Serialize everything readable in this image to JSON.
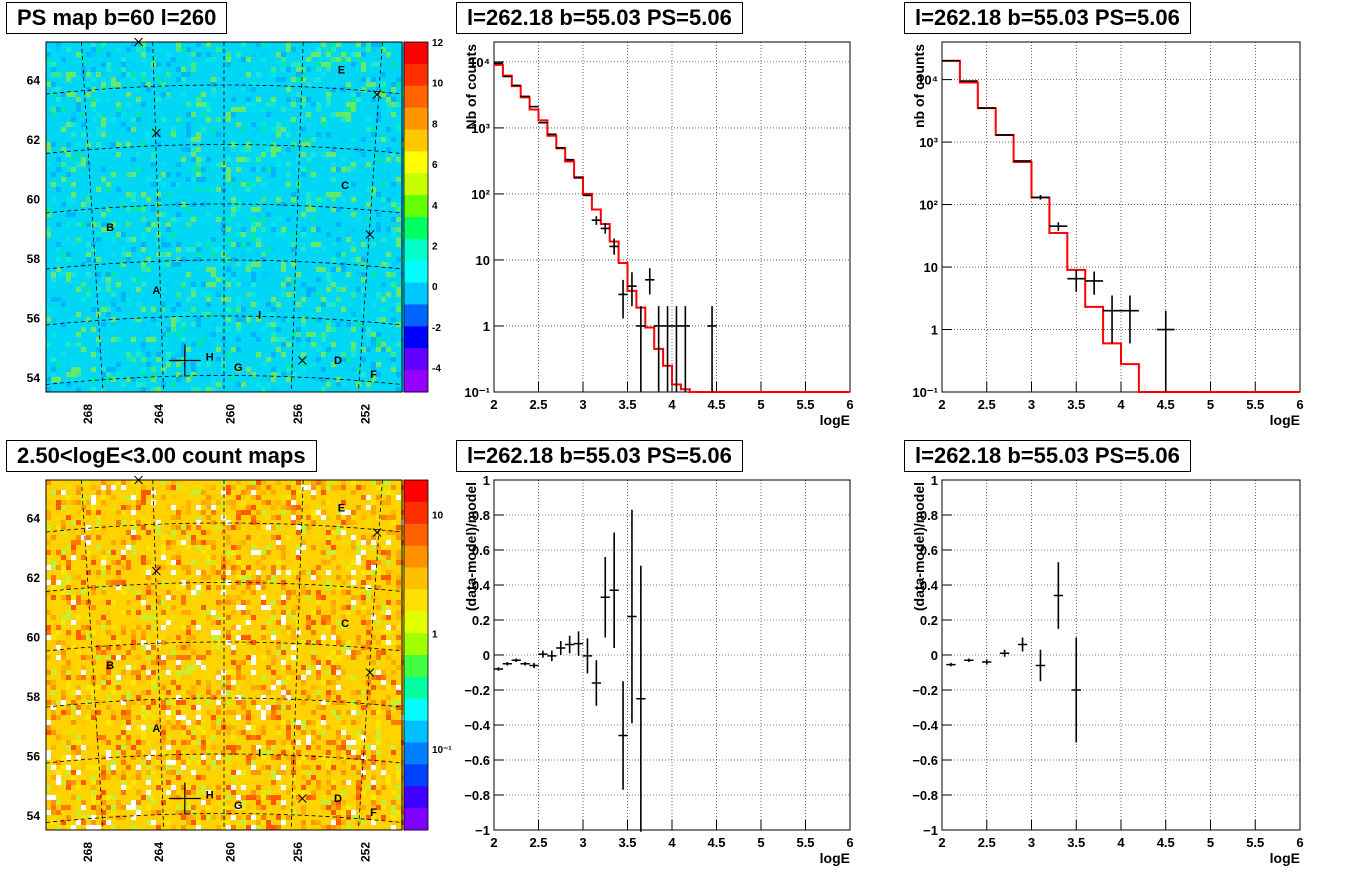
{
  "panels": {
    "map1_title": "PS map b=60 l=260",
    "spec1_title": "l=262.18 b=55.03 PS=5.06",
    "spec2_title": "l=262.18 b=55.03 PS=5.06",
    "map2_title": "2.50<logE<3.00 count maps",
    "res1_title": "l=262.18 b=55.03 PS=5.06",
    "res2_title": "l=262.18 b=55.03 PS=5.06"
  },
  "colors": {
    "model_line": "#ff0000",
    "data_points": "#000000"
  },
  "maps": {
    "xticks": [
      "268",
      "264",
      "260",
      "256",
      "252"
    ],
    "yticks": [
      "64",
      "62",
      "60",
      "58",
      "56",
      "54"
    ],
    "source_labels": [
      "A",
      "B",
      "C",
      "D",
      "E",
      "F",
      "G",
      "H",
      "I"
    ],
    "map1_colorbar": [
      "12",
      "10",
      "8",
      "6",
      "4",
      "2",
      "0",
      "-2",
      "-4"
    ],
    "map2_colorbar": [
      "10",
      "1",
      "10⁻¹"
    ]
  },
  "chart_data": [
    {
      "type": "line",
      "xlabel": "logE",
      "ylabel": "Nb of counts",
      "xlim": [
        2,
        6
      ],
      "log_y": true,
      "ylim": [
        0.1,
        20000
      ],
      "xticks": [
        "2",
        "2.5",
        "3",
        "3.5",
        "4",
        "4.5",
        "5",
        "5.5",
        "6"
      ],
      "yticks": [
        "10⁴",
        "10³",
        "10²",
        "10",
        "1",
        "10⁻¹"
      ],
      "model_step": {
        "edges": [
          2.0,
          2.1,
          2.2,
          2.3,
          2.4,
          2.5,
          2.6,
          2.7,
          2.8,
          2.9,
          3.0,
          3.1,
          3.2,
          3.3,
          3.4,
          3.5,
          3.6,
          3.7,
          3.8,
          3.9,
          4.0,
          4.1,
          4.2
        ],
        "values": [
          9000,
          6200,
          4300,
          2900,
          1900,
          1300,
          760,
          490,
          310,
          180,
          100,
          58,
          35,
          19,
          9,
          3.4,
          1.9,
          0.95,
          0.45,
          0.25,
          0.13,
          0.11
        ]
      },
      "data": [
        {
          "x": 2.05,
          "y": 9500,
          "ylo": 9200,
          "yhi": 9800
        },
        {
          "x": 2.15,
          "y": 6000
        },
        {
          "x": 2.25,
          "y": 4400
        },
        {
          "x": 2.35,
          "y": 3000
        },
        {
          "x": 2.45,
          "y": 2100
        },
        {
          "x": 2.55,
          "y": 1200
        },
        {
          "x": 2.65,
          "y": 800
        },
        {
          "x": 2.75,
          "y": 500
        },
        {
          "x": 2.85,
          "y": 330
        },
        {
          "x": 2.95,
          "y": 175
        },
        {
          "x": 3.05,
          "y": 95
        },
        {
          "x": 3.15,
          "y": 40,
          "ylo": 34,
          "yhi": 46
        },
        {
          "x": 3.25,
          "y": 30,
          "ylo": 25,
          "yhi": 36
        },
        {
          "x": 3.35,
          "y": 16,
          "ylo": 12,
          "yhi": 21
        },
        {
          "x": 3.45,
          "y": 3,
          "ylo": 1.3,
          "yhi": 5
        },
        {
          "x": 3.55,
          "y": 4,
          "ylo": 2,
          "yhi": 6.5
        },
        {
          "x": 3.65,
          "y": 1,
          "ylo": 0.1,
          "yhi": 2
        },
        {
          "x": 3.75,
          "y": 5,
          "ylo": 3,
          "yhi": 7.5
        },
        {
          "x": 3.85,
          "y": 1,
          "ylo": 0.1,
          "yhi": 2
        },
        {
          "x": 3.95,
          "y": 1,
          "ylo": 0.1,
          "yhi": 2
        },
        {
          "x": 4.05,
          "y": 1,
          "ylo": 0.1,
          "yhi": 2
        },
        {
          "x": 4.15,
          "y": 1,
          "ylo": 0.1,
          "yhi": 2
        },
        {
          "x": 4.45,
          "y": 1,
          "ylo": 0.1,
          "yhi": 2
        }
      ]
    },
    {
      "type": "line",
      "xlabel": "logE",
      "ylabel": "nb of counts",
      "xlim": [
        2,
        6
      ],
      "log_y": true,
      "ylim": [
        0.1,
        40000
      ],
      "xticks": [
        "2",
        "2.5",
        "3",
        "3.5",
        "4",
        "4.5",
        "5",
        "5.5",
        "6"
      ],
      "yticks": [
        "10⁴",
        "10³",
        "10²",
        "10",
        "1",
        "10⁻¹"
      ],
      "model_step": {
        "edges": [
          2.0,
          2.2,
          2.4,
          2.6,
          2.8,
          3.0,
          3.2,
          3.4,
          3.6,
          3.8,
          4.0,
          4.2
        ],
        "values": [
          20000,
          9000,
          3500,
          1300,
          480,
          130,
          35,
          9,
          2.3,
          0.6,
          0.28
        ]
      },
      "data": [
        {
          "x": 2.1,
          "y": 20000
        },
        {
          "x": 2.3,
          "y": 9500
        },
        {
          "x": 2.5,
          "y": 3500
        },
        {
          "x": 2.7,
          "y": 1300
        },
        {
          "x": 2.9,
          "y": 500
        },
        {
          "x": 3.1,
          "y": 130,
          "ylo": 120,
          "yhi": 142
        },
        {
          "x": 3.3,
          "y": 45,
          "ylo": 38,
          "yhi": 52
        },
        {
          "x": 3.5,
          "y": 6.5,
          "ylo": 4,
          "yhi": 9
        },
        {
          "x": 3.7,
          "y": 6,
          "ylo": 3.6,
          "yhi": 8.5
        },
        {
          "x": 3.9,
          "y": 2,
          "ylo": 0.6,
          "yhi": 3.5
        },
        {
          "x": 4.1,
          "y": 2,
          "ylo": 0.6,
          "yhi": 3.5
        },
        {
          "x": 4.5,
          "y": 1,
          "ylo": 0.1,
          "yhi": 2
        }
      ]
    },
    {
      "type": "scatter",
      "xlabel": "logE",
      "ylabel": "(data-model)/model",
      "xlim": [
        2,
        6
      ],
      "ylim": [
        -1,
        1
      ],
      "xticks": [
        "2",
        "2.5",
        "3",
        "3.5",
        "4",
        "4.5",
        "5",
        "5.5",
        "6"
      ],
      "yticks": [
        "1",
        "0.8",
        "0.6",
        "0.4",
        "0.2",
        "0",
        "−0.2",
        "−0.4",
        "−0.6",
        "−0.8",
        "−1"
      ],
      "data": [
        {
          "x": 2.05,
          "y": -0.08,
          "err": 0.01
        },
        {
          "x": 2.15,
          "y": -0.05,
          "err": 0.01
        },
        {
          "x": 2.25,
          "y": -0.03,
          "err": 0.01
        },
        {
          "x": 2.35,
          "y": -0.05,
          "err": 0.01
        },
        {
          "x": 2.45,
          "y": -0.06,
          "err": 0.015
        },
        {
          "x": 2.55,
          "y": 0.005,
          "err": 0.02
        },
        {
          "x": 2.65,
          "y": -0.005,
          "err": 0.03
        },
        {
          "x": 2.75,
          "y": 0.04,
          "err": 0.04
        },
        {
          "x": 2.85,
          "y": 0.06,
          "err": 0.05
        },
        {
          "x": 2.95,
          "y": 0.065,
          "err": 0.07
        },
        {
          "x": 3.05,
          "y": -0.005,
          "err": 0.1
        },
        {
          "x": 3.15,
          "y": -0.16,
          "err": 0.13
        },
        {
          "x": 3.25,
          "y": 0.33,
          "err": 0.23
        },
        {
          "x": 3.35,
          "y": 0.37,
          "err": 0.33
        },
        {
          "x": 3.45,
          "y": -0.46,
          "err": 0.31
        },
        {
          "x": 3.55,
          "y": 0.22,
          "err": 0.61
        },
        {
          "x": 3.65,
          "y": -0.25,
          "err": 0.76
        }
      ]
    },
    {
      "type": "scatter",
      "xlabel": "logE",
      "ylabel": "(data-model)/model",
      "xlim": [
        2,
        6
      ],
      "ylim": [
        -1,
        1
      ],
      "xticks": [
        "2",
        "2.5",
        "3",
        "3.5",
        "4",
        "4.5",
        "5",
        "5.5",
        "6"
      ],
      "yticks": [
        "1",
        "0.8",
        "0.6",
        "0.4",
        "0.2",
        "0",
        "−0.2",
        "−0.4",
        "−0.6",
        "−0.8",
        "−1"
      ],
      "data": [
        {
          "x": 2.1,
          "y": -0.055,
          "err": 0.01
        },
        {
          "x": 2.3,
          "y": -0.03,
          "err": 0.01
        },
        {
          "x": 2.5,
          "y": -0.04,
          "err": 0.015
        },
        {
          "x": 2.7,
          "y": 0.01,
          "err": 0.02
        },
        {
          "x": 2.9,
          "y": 0.06,
          "err": 0.04
        },
        {
          "x": 3.1,
          "y": -0.06,
          "err": 0.09
        },
        {
          "x": 3.3,
          "y": 0.34,
          "err": 0.19
        },
        {
          "x": 3.5,
          "y": -0.2,
          "err": 0.3
        }
      ]
    }
  ]
}
